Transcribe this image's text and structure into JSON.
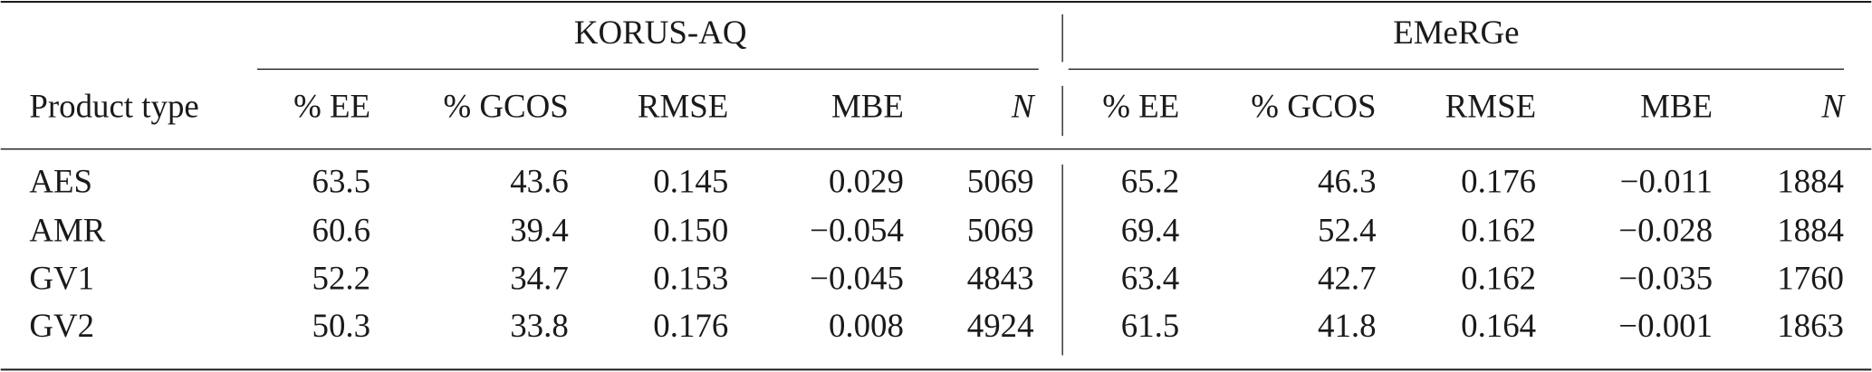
{
  "table": {
    "groups": [
      "KORUS-AQ",
      "EMeRGe"
    ],
    "columns": [
      "Product type",
      "% EE",
      "% GCOS",
      "RMSE",
      "MBE",
      "N",
      "% EE",
      "% GCOS",
      "RMSE",
      "MBE",
      "N"
    ],
    "rows": [
      [
        "AES",
        "63.5",
        "43.6",
        "0.145",
        "0.029",
        "5069",
        "65.2",
        "46.3",
        "0.176",
        "−0.011",
        "1884"
      ],
      [
        "AMR",
        "60.6",
        "39.4",
        "0.150",
        "−0.054",
        "5069",
        "69.4",
        "52.4",
        "0.162",
        "−0.028",
        "1884"
      ],
      [
        "GV1",
        "52.2",
        "34.7",
        "0.153",
        "−0.045",
        "4843",
        "63.4",
        "42.7",
        "0.162",
        "−0.035",
        "1760"
      ],
      [
        "GV2",
        "50.3",
        "33.8",
        "0.176",
        "0.008",
        "4924",
        "61.5",
        "41.8",
        "0.164",
        "−0.001",
        "1863"
      ]
    ]
  }
}
